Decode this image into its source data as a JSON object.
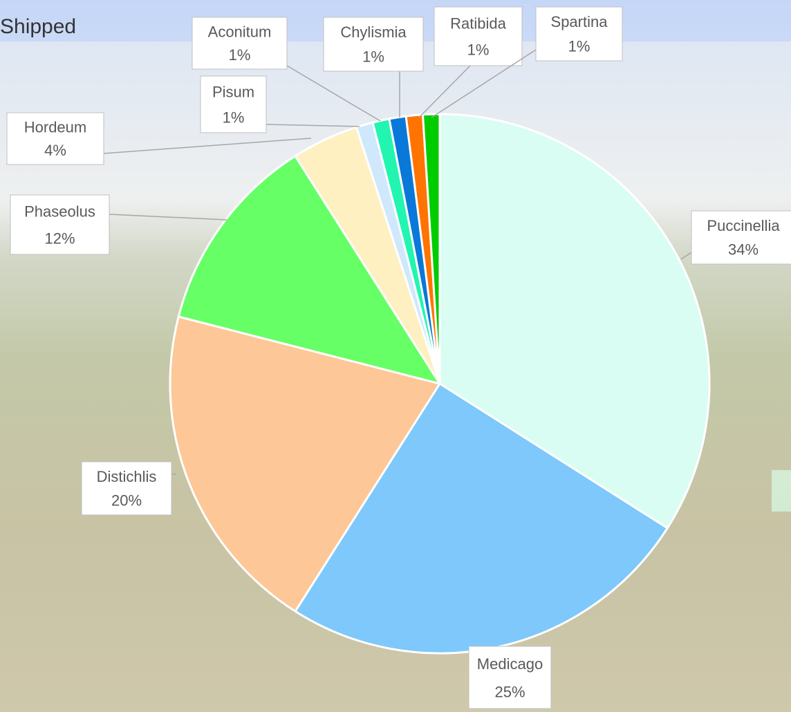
{
  "chart_data": {
    "type": "pie",
    "title": "Shipped",
    "categories": [
      "Puccinellia",
      "Medicago",
      "Distichlis",
      "Phaseolus",
      "Hordeum",
      "Pisum",
      "Aconitum",
      "Chylismia",
      "Ratibida",
      "Spartina"
    ],
    "values": [
      34,
      25,
      20,
      12,
      4,
      1,
      1,
      1,
      1,
      1
    ],
    "value_labels": [
      "34%",
      "25%",
      "20%",
      "12%",
      "4%",
      "1%",
      "1%",
      "1%",
      "1%",
      "1%"
    ],
    "colors": [
      "#d9fdf3",
      "#7ec8fb",
      "#fdc797",
      "#66ff66",
      "#fef0c0",
      "#cfe8fb",
      "#22f5b0",
      "#0a78d8",
      "#ff7300",
      "#00cc00"
    ]
  }
}
